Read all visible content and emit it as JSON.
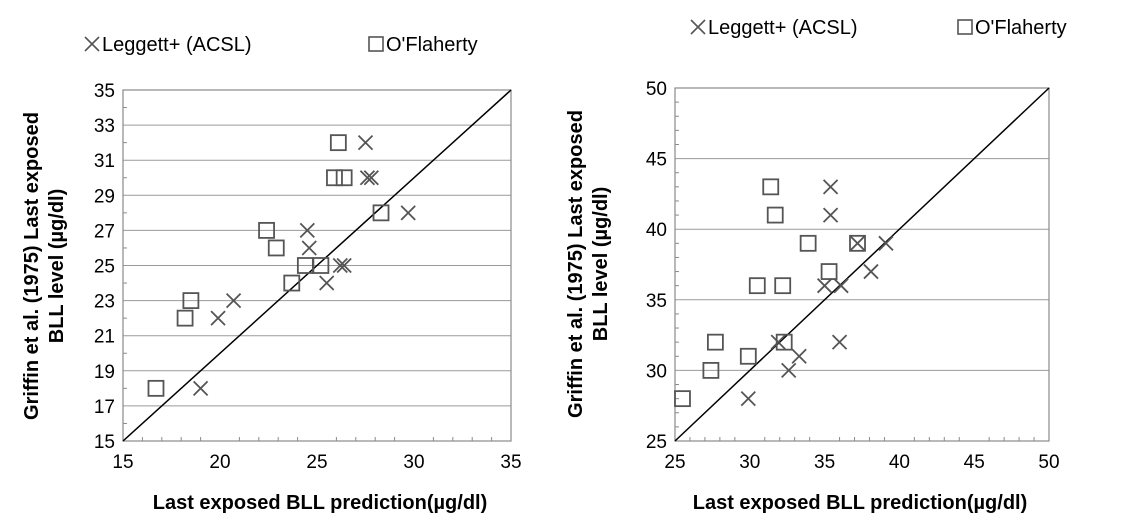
{
  "chart_data": [
    {
      "type": "scatter",
      "title": "",
      "xlabel": "Last exposed BLL prediction(µg/dl)",
      "ylabel_lines": [
        "Griffin et al. (1975) Last exposed",
        "BLL level (µg/dl)"
      ],
      "xlim": [
        15,
        35
      ],
      "ylim": [
        15,
        35
      ],
      "xticks": [
        15,
        20,
        25,
        30,
        35
      ],
      "yticks": [
        15,
        17,
        19,
        21,
        23,
        25,
        27,
        29,
        31,
        33,
        35
      ],
      "grid": "horizontal",
      "legend_position": "top",
      "identity_line": true,
      "series": [
        {
          "name": "Leggett+ (ACSL)",
          "marker": "x",
          "color": "#555555",
          "points": [
            [
              19.0,
              18
            ],
            [
              19.9,
              22
            ],
            [
              20.7,
              23
            ],
            [
              24.5,
              27
            ],
            [
              24.6,
              26
            ],
            [
              25.5,
              24
            ],
            [
              26.2,
              25
            ],
            [
              26.4,
              25
            ],
            [
              27.5,
              32
            ],
            [
              27.6,
              30
            ],
            [
              27.8,
              30
            ],
            [
              29.7,
              28
            ]
          ]
        },
        {
          "name": "O'Flaherty",
          "marker": "square",
          "color": "#555555",
          "points": [
            [
              16.7,
              18
            ],
            [
              18.2,
              22
            ],
            [
              18.5,
              23
            ],
            [
              22.4,
              27
            ],
            [
              22.9,
              26
            ],
            [
              23.7,
              24
            ],
            [
              24.4,
              25
            ],
            [
              25.2,
              25
            ],
            [
              25.9,
              30
            ],
            [
              26.1,
              32
            ],
            [
              26.4,
              30
            ],
            [
              28.3,
              28
            ]
          ]
        }
      ]
    },
    {
      "type": "scatter",
      "title": "",
      "xlabel": "Last exposed BLL prediction(µg/dl)",
      "ylabel_lines": [
        "Griffin et al. (1975) Last exposed",
        "BLL level (µg/dl)"
      ],
      "xlim": [
        25,
        50
      ],
      "ylim": [
        25,
        50
      ],
      "xticks": [
        25,
        30,
        35,
        40,
        45,
        50
      ],
      "yticks": [
        25,
        30,
        35,
        40,
        45,
        50
      ],
      "grid": "horizontal",
      "legend_position": "top",
      "identity_line": true,
      "series": [
        {
          "name": "Leggett+ (ACSL)",
          "marker": "x",
          "color": "#555555",
          "points": [
            [
              29.9,
              28
            ],
            [
              31.9,
              32
            ],
            [
              32.6,
              30
            ],
            [
              33.3,
              31
            ],
            [
              35.0,
              36
            ],
            [
              35.4,
              43
            ],
            [
              35.4,
              41
            ],
            [
              36.0,
              32
            ],
            [
              36.1,
              36
            ],
            [
              37.2,
              39
            ],
            [
              38.1,
              37
            ],
            [
              39.1,
              39
            ]
          ]
        },
        {
          "name": "O'Flaherty",
          "marker": "square",
          "color": "#555555",
          "points": [
            [
              25.5,
              28
            ],
            [
              27.4,
              30
            ],
            [
              27.7,
              32
            ],
            [
              29.9,
              31
            ],
            [
              30.5,
              36
            ],
            [
              31.4,
              43
            ],
            [
              31.7,
              41
            ],
            [
              32.2,
              36
            ],
            [
              32.3,
              32
            ],
            [
              33.9,
              39
            ],
            [
              35.3,
              37
            ],
            [
              37.2,
              39
            ]
          ]
        }
      ]
    }
  ]
}
